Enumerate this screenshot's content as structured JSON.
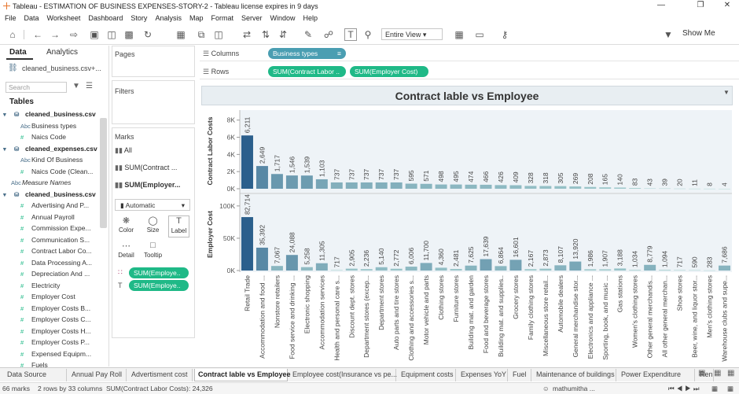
{
  "window": {
    "title": "Tableau - ESTIMATION OF BUSINESS EXPENSES-STORY-2 - Tableau license expires in 9 days"
  },
  "menu": [
    "File",
    "Data",
    "Worksheet",
    "Dashboard",
    "Story",
    "Analysis",
    "Map",
    "Format",
    "Server",
    "Window",
    "Help"
  ],
  "toolbar": {
    "fit": "Entire View",
    "show_me": "Show Me"
  },
  "data_pane": {
    "tabs": {
      "data": "Data",
      "analytics": "Analytics"
    },
    "datasource": "cleaned_business.csv+...",
    "search_placeholder": "Search",
    "tables_header": "Tables",
    "rows": [
      {
        "kind": "table",
        "label": "cleaned_business.csv"
      },
      {
        "kind": "dim",
        "icon": "Abc",
        "label": "Business types"
      },
      {
        "kind": "measure",
        "icon": "#",
        "label": "Naics Code"
      },
      {
        "kind": "table",
        "label": "cleaned_expenses.csv"
      },
      {
        "kind": "dim",
        "icon": "Abc",
        "label": "Kind Of Business"
      },
      {
        "kind": "measure",
        "icon": "#",
        "label": "Naics Code (Clean..."
      },
      {
        "kind": "mn",
        "icon": "Abc",
        "label": "Measure Names"
      },
      {
        "kind": "table",
        "label": "cleaned_business.csv"
      },
      {
        "kind": "measure",
        "icon": "#",
        "label": "Advertising And P..."
      },
      {
        "kind": "measure",
        "icon": "#",
        "label": "Annual Payroll"
      },
      {
        "kind": "measure",
        "icon": "#",
        "label": "Commission Expe..."
      },
      {
        "kind": "measure",
        "icon": "#",
        "label": "Communication S..."
      },
      {
        "kind": "measure",
        "icon": "#",
        "label": "Contract Labor Co..."
      },
      {
        "kind": "measure",
        "icon": "#",
        "label": "Data Processing A..."
      },
      {
        "kind": "measure",
        "icon": "#",
        "label": "Depreciation And ..."
      },
      {
        "kind": "measure",
        "icon": "#",
        "label": "Electricity"
      },
      {
        "kind": "measure",
        "icon": "#",
        "label": "Employer Cost"
      },
      {
        "kind": "measure",
        "icon": "#",
        "label": "Employer Costs B..."
      },
      {
        "kind": "measure",
        "icon": "#",
        "label": "Employer Costs C..."
      },
      {
        "kind": "measure",
        "icon": "#",
        "label": "Employer Costs H..."
      },
      {
        "kind": "measure",
        "icon": "#",
        "label": "Employer Costs P..."
      },
      {
        "kind": "measure",
        "icon": "#",
        "label": "Expensed Equipm..."
      },
      {
        "kind": "measure",
        "icon": "#",
        "label": "Fuels"
      }
    ]
  },
  "cards": {
    "pages": "Pages",
    "filters": "Filters",
    "marks": "Marks",
    "mark_rows": [
      "All",
      "SUM(Contract ...",
      "SUM(Employer..."
    ],
    "mark_type": "Automatic",
    "buttons": [
      "Color",
      "Size",
      "Label",
      "Detail",
      "Tooltip"
    ],
    "pills": [
      "SUM(Employe..",
      "SUM(Employe.."
    ]
  },
  "shelves": {
    "columns_label": "Columns",
    "rows_label": "Rows",
    "columns_pill": "Business types",
    "rows_pills": [
      "SUM(Contract Labor ..",
      "SUM(Employer Cost)"
    ]
  },
  "sheet_tabs": [
    "Data Source",
    "Annual Pay Roll",
    "Advertisment cost",
    "Contract lable vs Employee",
    "Employee cost(Insurance vs pe...",
    "Equipment costs",
    "Expenses YoY",
    "Fuel",
    "Maintenance of buildings",
    "Power Expenditure",
    "Ren"
  ],
  "active_tab": "Contract lable vs Employee",
  "status": {
    "marks": "66 marks",
    "rowscols": "2 rows by 33 columns",
    "sum": "SUM(Contract Labor Costs): 24,326",
    "user": "mathumitha ..."
  },
  "colors": {
    "pill_green": "#1fb987",
    "pill_blue": "#4a9eb2",
    "bar_dark": "#2b5f8c",
    "bar_light": "#a9d9d0"
  },
  "chart_data": {
    "type": "bar",
    "title": "Contract lable vs Employee",
    "categories": [
      "Retail Trade",
      "Accommodation and food ...",
      "Nonstore retailers",
      "Food service and drinking ...",
      "Electronic shopping",
      "Accommodation services",
      "Health and personal care s...",
      "Discount dept. stores",
      "Department stores (excep...",
      "Department stores",
      "Auto parts and tire stores",
      "Clothing and accessories s...",
      "Motor vehicle and parts",
      "Clothing stores",
      "Furniture stores",
      "Building mat. and garden",
      "Food and beverage stores",
      "Building mat. and supplies..",
      "Grocery stores",
      "Family clothing stores",
      "Miscellaneous store retail...",
      "Automobile dealers",
      "General merchandise stor...",
      "Electronics and appliance ...",
      "Sporting, book, and music ...",
      "Gas stations",
      "Women's clothing stores",
      "Other general merchandis...",
      "All other general merchan...",
      "Shoe stores",
      "Beer, wine, and liquor stor...",
      "Men's clothing stores",
      "Warehouse clubs and supe..."
    ],
    "series": [
      {
        "name": "Contract Labor Costs",
        "axis_ticks": [
          "0K",
          "2K",
          "4K",
          "6K",
          "8K"
        ],
        "ylim": [
          0,
          8800
        ],
        "values": [
          6211,
          2649,
          1717,
          1546,
          1539,
          1103,
          737,
          737,
          737,
          737,
          737,
          595,
          571,
          498,
          495,
          474,
          466,
          426,
          409,
          328,
          318,
          305,
          269,
          208,
          165,
          140,
          83,
          43,
          39,
          20,
          11,
          8,
          4
        ]
      },
      {
        "name": "Employer Cost",
        "axis_ticks": [
          "0K",
          "50K",
          "100K"
        ],
        "ylim": [
          0,
          112000
        ],
        "values": [
          82714,
          35392,
          7067,
          24088,
          5258,
          11305,
          717,
          2905,
          2236,
          5140,
          2772,
          6006,
          11700,
          4360,
          2481,
          7625,
          17639,
          6864,
          16601,
          2167,
          2873,
          8107,
          13920,
          1986,
          1907,
          3188,
          1034,
          8779,
          1094,
          717,
          590,
          283,
          7686
        ]
      }
    ],
    "labels": [
      "6,211",
      "2,649",
      "1,717",
      "1,546",
      "1,539",
      "1,103",
      "737",
      "737",
      "737",
      "737",
      "737",
      "595",
      "571",
      "498",
      "495",
      "474",
      "466",
      "426",
      "409",
      "328",
      "318",
      "305",
      "269",
      "208",
      "165",
      "140",
      "83",
      "43",
      "39",
      "20",
      "11",
      "8",
      "4"
    ],
    "labels2": [
      "82,714",
      "35,392",
      "7,067",
      "24,088",
      "5,258",
      "11,305",
      "717",
      "2,905",
      "2,236",
      "5,140",
      "2,772",
      "6,006",
      "11,700",
      "4,360",
      "2,481",
      "7,625",
      "17,639",
      "6,864",
      "16,601",
      "2,167",
      "2,873",
      "8,107",
      "13,920",
      "1,986",
      "1,907",
      "3,188",
      "1,034",
      "8,779",
      "1,094",
      "717",
      "590",
      "283",
      "7,686"
    ]
  }
}
